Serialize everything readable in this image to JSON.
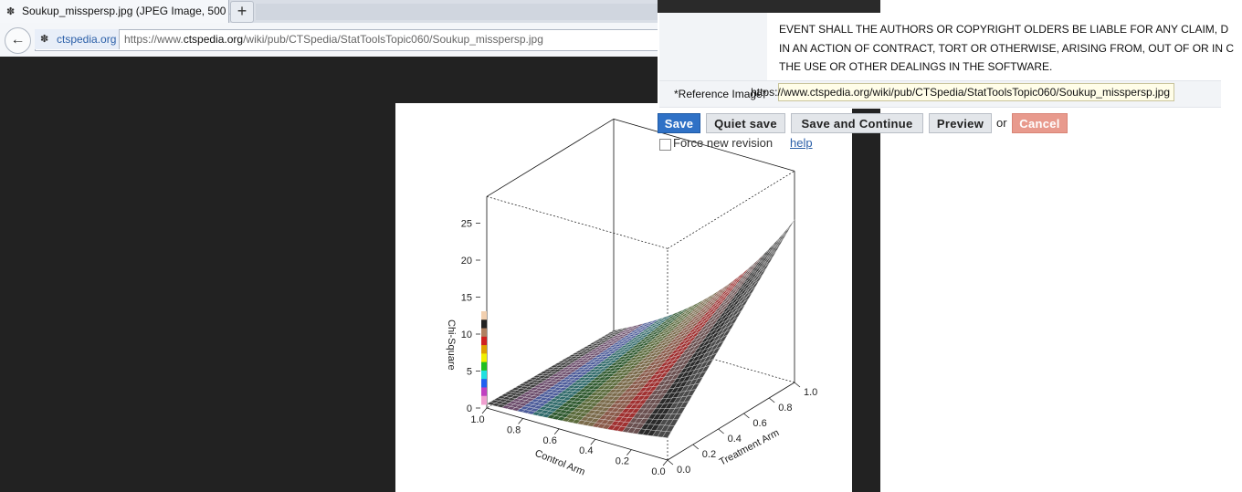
{
  "browser": {
    "tab_title": "Soukup_misspersp.jpg (JPEG Image, 500 ...",
    "new_tab_glyph": "+",
    "back_glyph": "←",
    "site_domain": "ctspedia.org",
    "url_prefix": "https://www.",
    "url_host": "ctspedia.org",
    "url_path": "/wiki/pub/CTSpedia/StatToolsTopic060/Soukup_misspersp.jpg",
    "favicon": "ctspedia-favicon-icon"
  },
  "wiki_form": {
    "license_lines": [
      "EVENT SHALL THE AUTHORS OR COPYRIGHT OLDERS BE LIABLE FOR ANY CLAIM, D",
      "IN AN ACTION OF CONTRACT, TORT OR OTHERWISE, ARISING FROM, OUT OF OR IN C",
      "THE USE OR OTHER DEALINGS IN THE SOFTWARE."
    ],
    "ref_label": "*Reference Image*",
    "ref_value": "https://www.ctspedia.org/wiki/pub/CTSpedia/StatToolsTopic060/Soukup_misspersp.jpg",
    "buttons": {
      "save": "Save",
      "quiet_save": "Quiet save",
      "save_continue": "Save and Continue",
      "preview": "Preview",
      "or": "or",
      "cancel": "Cancel"
    },
    "force_label": "Force new revision",
    "help_label": "help"
  },
  "chart_data": {
    "type": "surface",
    "title": "",
    "zlabel": "Chi-Square",
    "xlabel": "Control Arm",
    "ylabel": "Treatment Arm",
    "z_ticks": [
      "0",
      "5",
      "10",
      "15",
      "20",
      "25"
    ],
    "x_ticks": [
      "1.0",
      "0.8",
      "0.6",
      "0.4",
      "0.2",
      "0.0"
    ],
    "y_ticks": [
      "0.0",
      "0.2",
      "0.4",
      "0.6",
      "0.8",
      "1.0"
    ],
    "zlim": [
      0,
      28
    ],
    "surface_description_values": {
      "control_arm_1_treatment_0": 1,
      "control_arm_0_treatment_0": 3,
      "control_arm_1_treatment_1": 0,
      "control_arm_0_treatment_1": 22
    },
    "colorbar_colors": [
      "#f2d0b0",
      "#222222",
      "#b08060",
      "#d02020",
      "#e0a000",
      "#f0f000",
      "#20c020",
      "#20e0e0",
      "#2060f0",
      "#c040c0",
      "#f0a0d0"
    ],
    "surface_band_colors": [
      "#3b3b3b",
      "#6a4a6a",
      "#4a5a9a",
      "#2f6a6a",
      "#2f5a2f",
      "#5a6a3a",
      "#7a6a4a",
      "#8a5a4a",
      "#a03030",
      "#6a5050",
      "#2a2a2a",
      "#4a4a4a"
    ]
  }
}
